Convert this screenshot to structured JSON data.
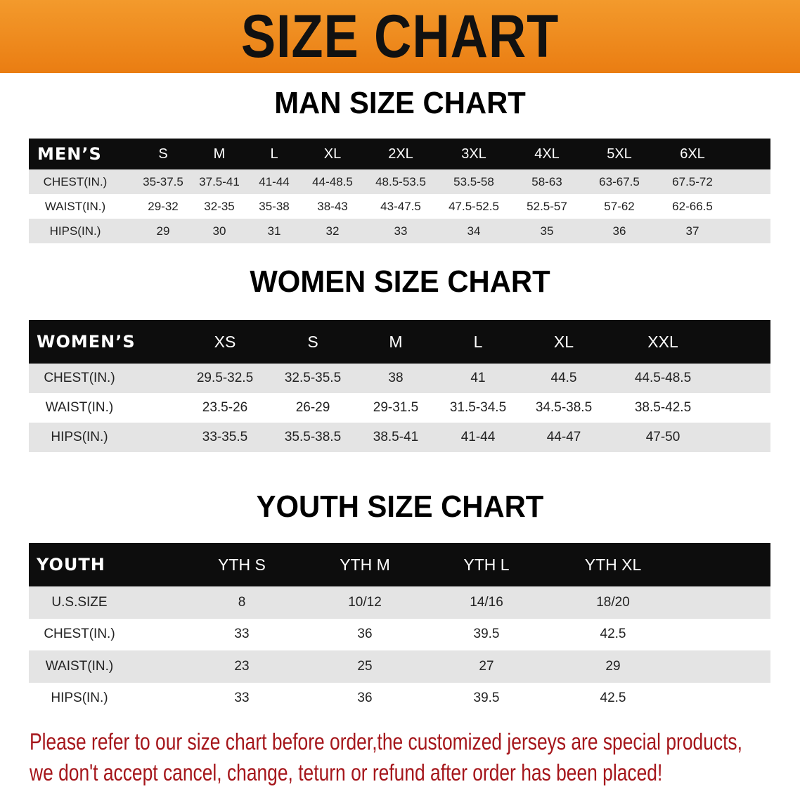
{
  "banner": {
    "title": "SIZE CHART",
    "color": "#ee8a1c"
  },
  "men": {
    "title": "MAN SIZE CHART",
    "header": [
      "MEN’S",
      "S",
      "M",
      "L",
      "XL",
      "2XL",
      "3XL",
      "4XL",
      "5XL",
      "6XL"
    ],
    "rows": [
      [
        "CHEST(IN.)",
        "35-37.5",
        "37.5-41",
        "41-44",
        "44-48.5",
        "48.5-53.5",
        "53.5-58",
        "58-63",
        "63-67.5",
        "67.5-72"
      ],
      [
        "WAIST(IN.)",
        "29-32",
        "32-35",
        "35-38",
        "38-43",
        "43-47.5",
        "47.5-52.5",
        "52.5-57",
        "57-62",
        "62-66.5"
      ],
      [
        "HIPS(IN.)",
        "29",
        "30",
        "31",
        "32",
        "33",
        "34",
        "35",
        "36",
        "37"
      ]
    ]
  },
  "women": {
    "title": "WOMEN SIZE CHART",
    "header": [
      "WOMEN’S",
      "XS",
      "S",
      "M",
      "L",
      "XL",
      "XXL"
    ],
    "rows": [
      [
        "CHEST(IN.)",
        "29.5-32.5",
        "32.5-35.5",
        "38",
        "41",
        "44.5",
        "44.5-48.5"
      ],
      [
        "WAIST(IN.)",
        "23.5-26",
        "26-29",
        "29-31.5",
        "31.5-34.5",
        "34.5-38.5",
        "38.5-42.5"
      ],
      [
        "HIPS(IN.)",
        "33-35.5",
        "35.5-38.5",
        "38.5-41",
        "41-44",
        "44-47",
        "47-50"
      ]
    ]
  },
  "youth": {
    "title": "YOUTH SIZE CHART",
    "header": [
      "YOUTH",
      "YTH S",
      "YTH M",
      "YTH L",
      "YTH XL"
    ],
    "rows": [
      [
        "U.S.SIZE",
        "8",
        "10/12",
        "14/16",
        "18/20"
      ],
      [
        "CHEST(IN.)",
        "33",
        "36",
        "39.5",
        "42.5"
      ],
      [
        "WAIST(IN.)",
        "23",
        "25",
        "27",
        "29"
      ],
      [
        "HIPS(IN.)",
        "33",
        "36",
        "39.5",
        "42.5"
      ]
    ]
  },
  "notice": {
    "line1": "Please refer to our size chart before order,the customized jerseys are special products,",
    "line2": "we don't accept cancel, change, teturn or refund after order has been placed!",
    "color": "#a5161b"
  }
}
